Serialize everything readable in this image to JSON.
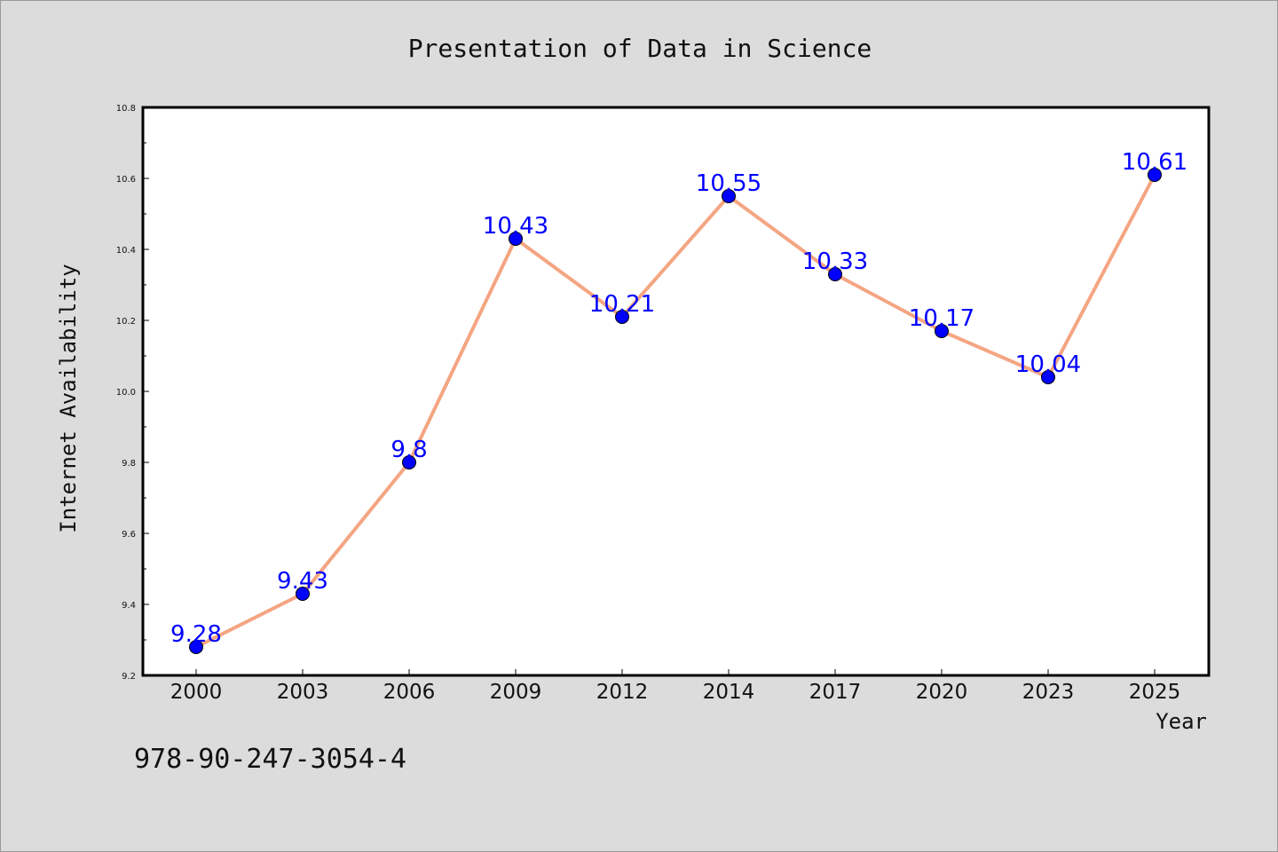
{
  "chart_data": {
    "type": "line",
    "title": "Presentation of Data in Science",
    "xlabel": "Year",
    "ylabel": "Internet Availability",
    "categories": [
      "2000",
      "2003",
      "2006",
      "2009",
      "2012",
      "2014",
      "2017",
      "2020",
      "2023",
      "2025"
    ],
    "values": [
      9.28,
      9.43,
      9.8,
      10.43,
      10.21,
      10.55,
      10.33,
      10.17,
      10.04,
      10.61
    ],
    "ylim": [
      9.2,
      10.8
    ],
    "yticks": [
      "9.2",
      "9.4",
      "9.6",
      "9.8",
      "10.0",
      "10.2",
      "10.4",
      "10.6",
      "10.8"
    ],
    "grid": false,
    "legend": "none",
    "line_color": "#f4a582",
    "marker_color": "#0000ff",
    "label_color": "#0000ff",
    "background": "#dcdcdc",
    "plot_background": "#ffffff"
  },
  "footer": {
    "isbn": "978-90-247-3054-4"
  }
}
